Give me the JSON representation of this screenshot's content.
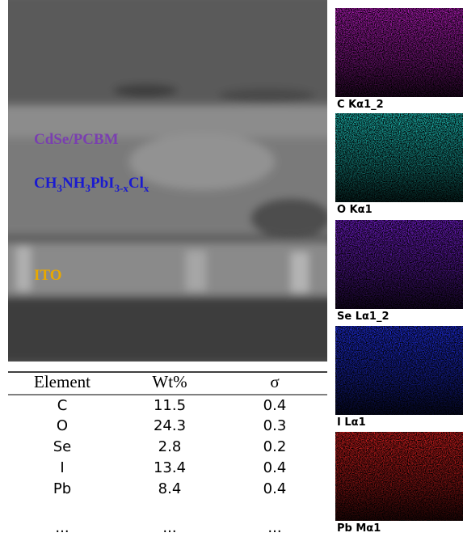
{
  "sem_image": {
    "labels": [
      {
        "text": "CdSe/PCBM",
        "color": "#7a3fb0"
      },
      {
        "parts": [
          "CH",
          "3",
          "NH",
          "3",
          "PbI",
          "3-x",
          "Cl",
          "x"
        ],
        "color": "#1a1ad0"
      },
      {
        "text": "ITO",
        "color": "#e8a800"
      }
    ]
  },
  "maps": [
    {
      "label": "C Kα1_2",
      "color": "#c020c8"
    },
    {
      "label": "O Kα1",
      "color": "#20c8c0"
    },
    {
      "label": "Se Lα1_2",
      "color": "#7a20d8"
    },
    {
      "label": "I Lα1",
      "color": "#2030e8"
    },
    {
      "label": "Pb Mα1",
      "color": "#e02020"
    }
  ],
  "table": {
    "header": [
      "Element",
      "Wt%",
      "σ"
    ],
    "rows": [
      [
        "C",
        "11.5",
        "0.4"
      ],
      [
        "O",
        "24.3",
        "0.3"
      ],
      [
        "Se",
        "2.8",
        "0.2"
      ],
      [
        "I",
        "13.4",
        "0.4"
      ],
      [
        "Pb",
        "8.4",
        "0.4"
      ],
      [
        "...",
        "...",
        "..."
      ]
    ]
  }
}
